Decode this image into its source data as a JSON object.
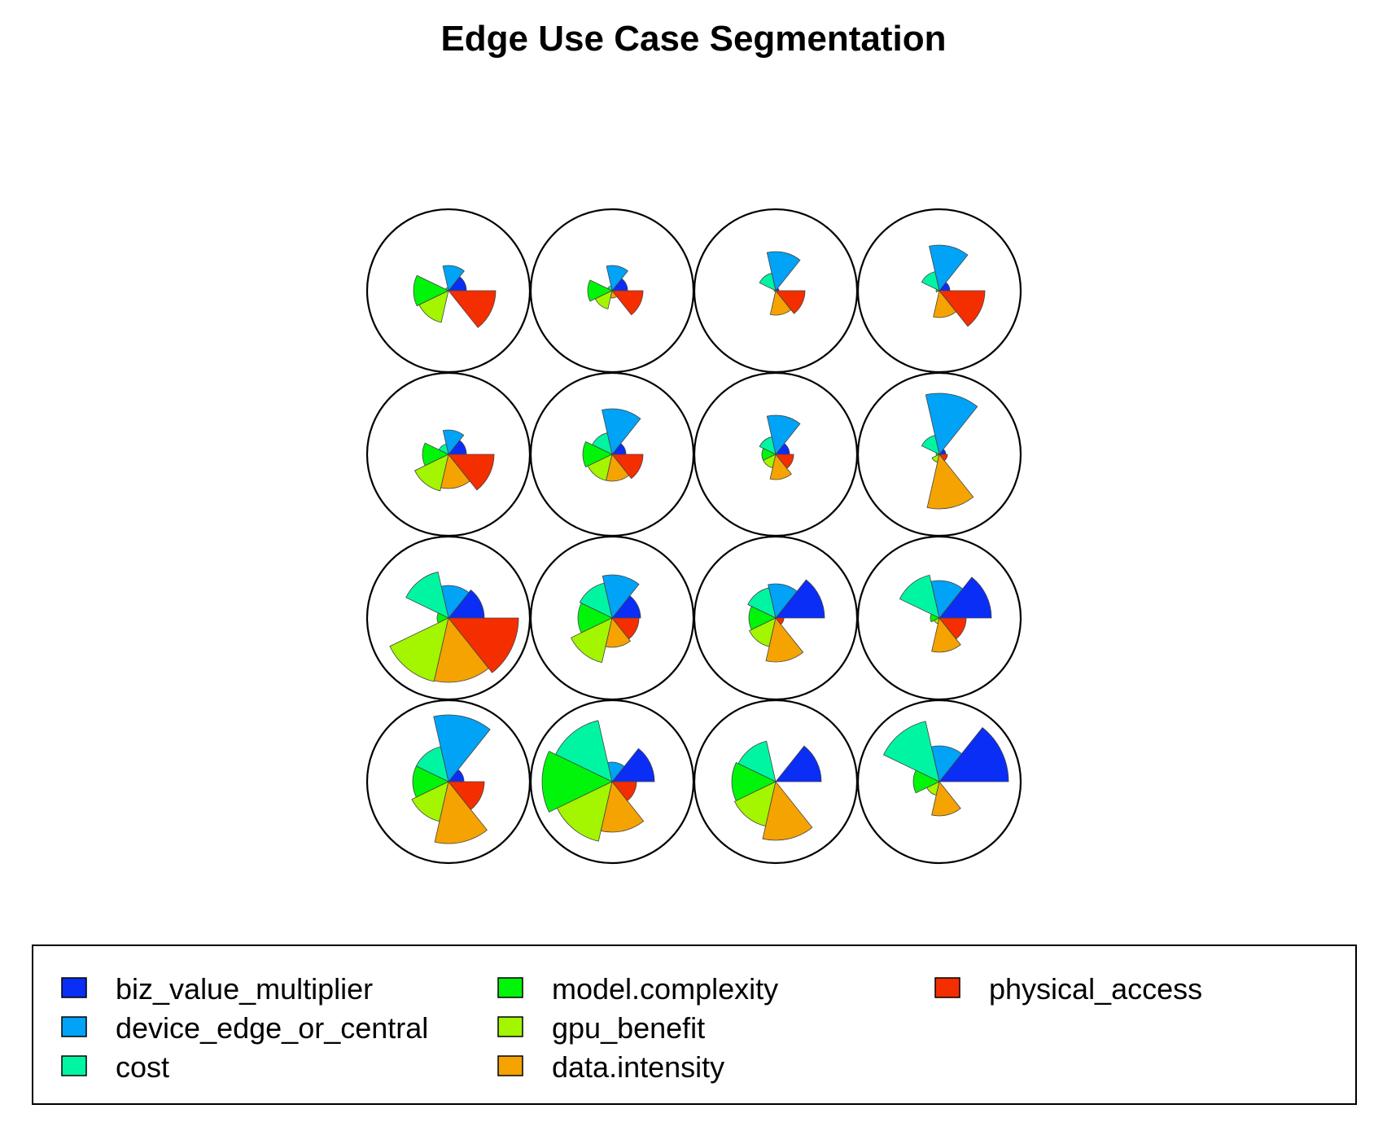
{
  "chart_data": {
    "type": "segment-star",
    "title": "Edge Use Case Segmentation",
    "layout": {
      "rows": 4,
      "cols": 4
    },
    "variables": [
      "biz_value_multiplier",
      "device_edge_or_central",
      "cost",
      "model.complexity",
      "gpu_benefit",
      "data.intensity",
      "physical_access"
    ],
    "colors": [
      "#0a2ef5",
      "#00a3f5",
      "#00f5a3",
      "#00f50a",
      "#a3f500",
      "#f5a300",
      "#f52e00"
    ],
    "value_range": [
      0,
      1
    ],
    "legend_position": "bottom",
    "legend": {
      "entries": [
        "biz_value_multiplier",
        "device_edge_or_central",
        "cost",
        "model.complexity",
        "gpu_benefit",
        "data.intensity",
        "physical_access"
      ]
    },
    "cases": [
      [
        0.22,
        0.31,
        0.04,
        0.43,
        0.4,
        0.0,
        0.58
      ],
      [
        0.19,
        0.31,
        0.06,
        0.3,
        0.23,
        0.09,
        0.38
      ],
      [
        0.04,
        0.48,
        0.22,
        0.02,
        0.0,
        0.3,
        0.36
      ],
      [
        0.13,
        0.56,
        0.24,
        0.04,
        0.0,
        0.33,
        0.56
      ],
      [
        0.22,
        0.3,
        0.13,
        0.32,
        0.46,
        0.42,
        0.56
      ],
      [
        0.17,
        0.56,
        0.27,
        0.36,
        0.33,
        0.33,
        0.38
      ],
      [
        0.17,
        0.48,
        0.22,
        0.17,
        0.17,
        0.31,
        0.22
      ],
      [
        0.08,
        0.75,
        0.24,
        0.04,
        0.1,
        0.67,
        0.1
      ],
      [
        0.44,
        0.4,
        0.58,
        0.14,
        0.8,
        0.79,
        0.86
      ],
      [
        0.35,
        0.53,
        0.44,
        0.42,
        0.56,
        0.36,
        0.33
      ],
      [
        0.6,
        0.42,
        0.38,
        0.33,
        0.36,
        0.54,
        0.1
      ],
      [
        0.64,
        0.46,
        0.54,
        0.11,
        0.07,
        0.42,
        0.33
      ],
      [
        0.19,
        0.82,
        0.44,
        0.44,
        0.5,
        0.76,
        0.44
      ],
      [
        0.52,
        0.24,
        0.77,
        0.86,
        0.75,
        0.62,
        0.3
      ],
      [
        0.56,
        0.0,
        0.51,
        0.54,
        0.56,
        0.72,
        0.0
      ],
      [
        0.85,
        0.44,
        0.76,
        0.32,
        0.17,
        0.42,
        0.0
      ]
    ]
  }
}
